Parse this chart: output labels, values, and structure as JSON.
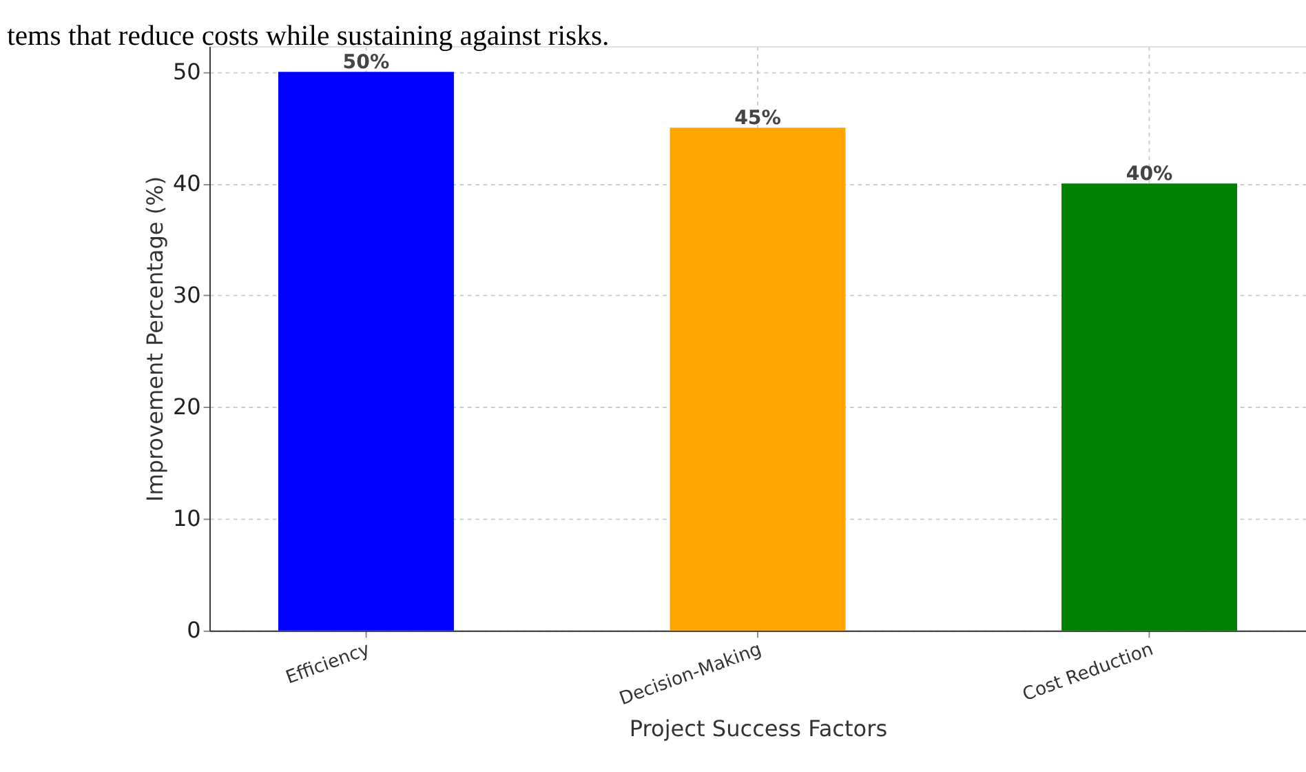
{
  "chart_data": {
    "type": "bar",
    "categories": [
      "Efficiency",
      "Decision-Making",
      "Cost Reduction"
    ],
    "values": [
      50,
      45,
      40
    ],
    "colors": [
      "#0000ff",
      "#ffa500",
      "#008000"
    ],
    "value_labels": [
      "50%",
      "45%",
      "40%"
    ],
    "xlabel": "Project Success Factors",
    "ylabel": "Improvement Percentage (%)",
    "ylim": [
      0,
      52.3
    ],
    "yticks": [
      0,
      10,
      20,
      30,
      40,
      50
    ],
    "grid": true,
    "annotations": [
      "tems that reduce costs while sustaining against risks."
    ]
  }
}
